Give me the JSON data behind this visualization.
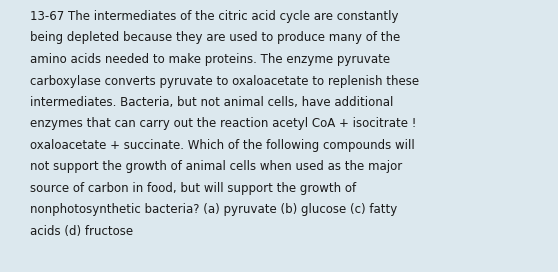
{
  "background_color": "#dce8ee",
  "text_color": "#1a1a1a",
  "font_size": 8.5,
  "font_family": "DejaVu Sans",
  "fig_width": 5.58,
  "fig_height": 2.72,
  "dpi": 100,
  "lines": [
    "13-67 The intermediates of the citric acid cycle are constantly",
    "being depleted because they are used to produce many of the",
    "amino acids needed to make proteins. The enzyme pyruvate",
    "carboxylase converts pyruvate to oxaloacetate to replenish these",
    "intermediates. Bacteria, but not animal cells, have additional",
    "enzymes that can carry out the reaction acetyl CoA + isocitrate !",
    "oxaloacetate + succinate. Which of the following compounds will",
    "not support the growth of animal cells when used as the major",
    "source of carbon in food, but will support the growth of",
    "nonphotosynthetic bacteria? (a) pyruvate (b) glucose (c) fatty",
    "acids (d) fructose"
  ]
}
